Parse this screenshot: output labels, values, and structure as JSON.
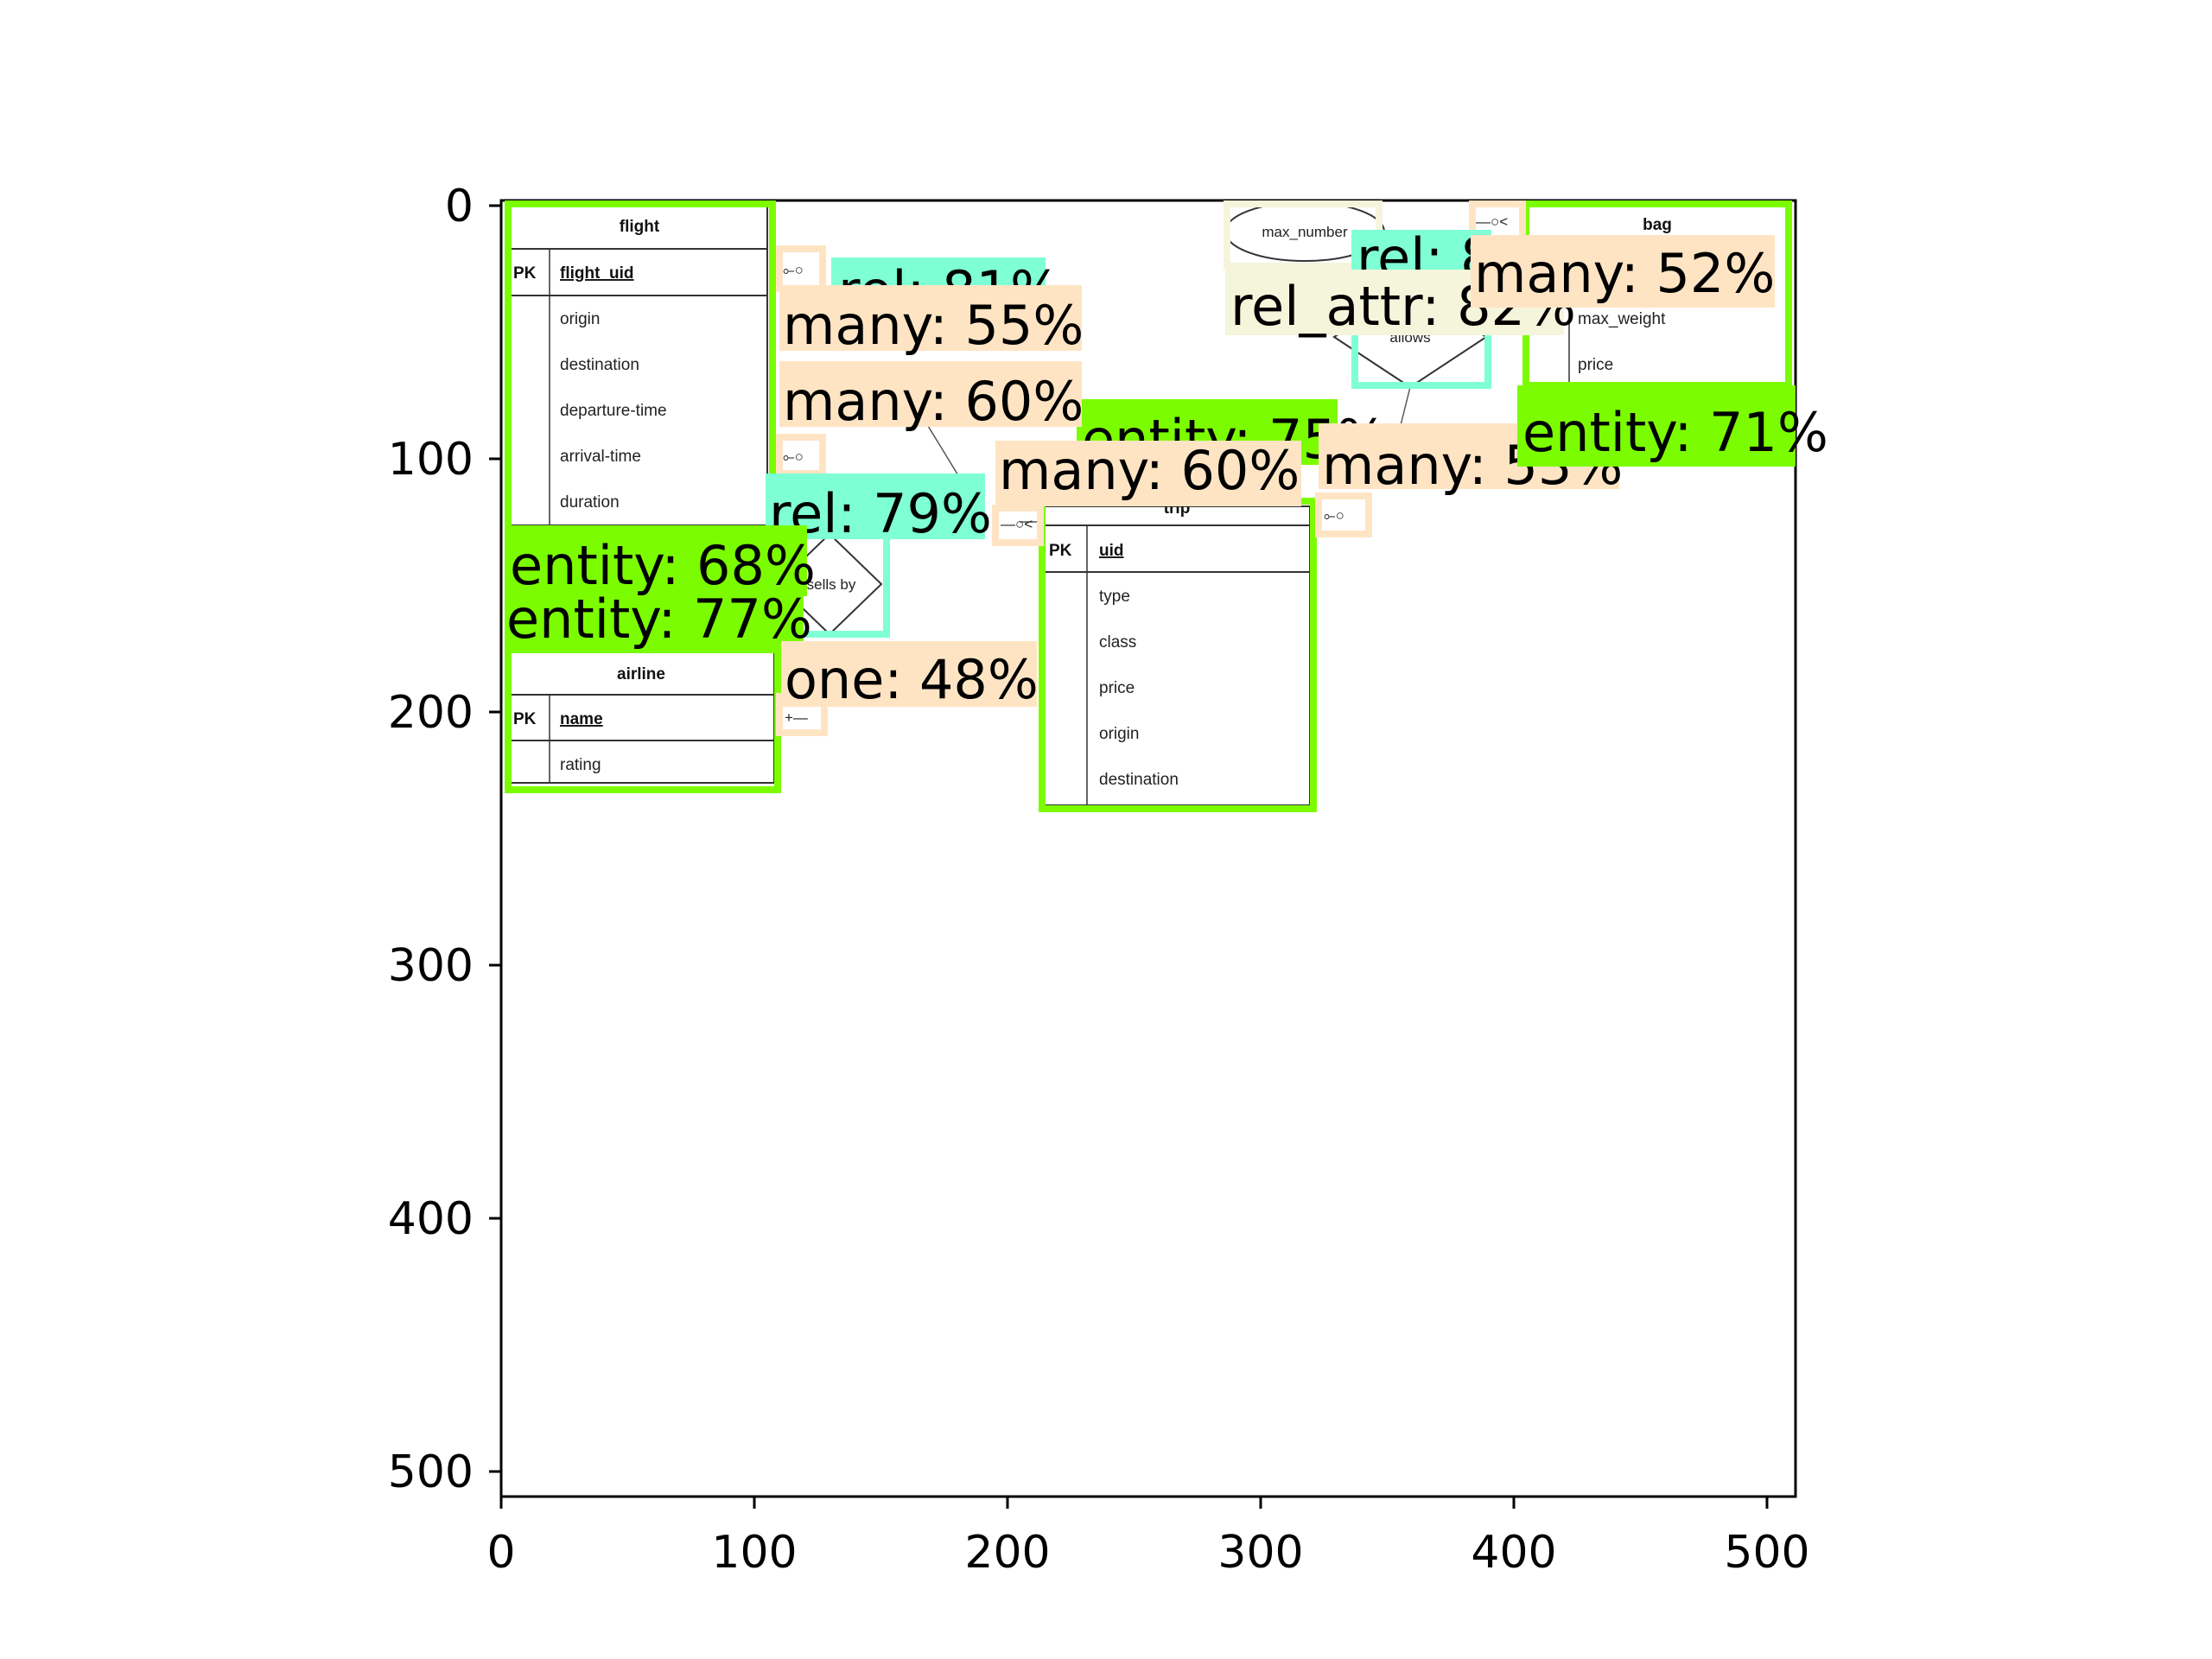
{
  "axes": {
    "x_ticks": [
      "0",
      "100",
      "200",
      "300",
      "400",
      "500"
    ],
    "y_ticks": [
      "0",
      "100",
      "200",
      "300",
      "400",
      "500"
    ]
  },
  "entities": {
    "flight": {
      "title": "flight",
      "pk_marker": "PK",
      "key": "flight_uid",
      "attributes": [
        "origin",
        "destination",
        "departure-time",
        "arrival-time",
        "duration"
      ]
    },
    "airline": {
      "title": "airline",
      "pk_marker": "PK",
      "key": "name",
      "attributes": [
        "rating"
      ]
    },
    "trip": {
      "title": "trip",
      "pk_marker": "PK",
      "key": "uid",
      "attributes": [
        "type",
        "class",
        "price",
        "origin",
        "destination"
      ]
    },
    "bag": {
      "title": "bag",
      "attributes": [
        "max_weight",
        "price"
      ]
    }
  },
  "relationships": {
    "sells_by": "sells by",
    "allows": "allows"
  },
  "rel_attributes": {
    "max_number": "max_number"
  },
  "cardinality_glyphs": {
    "many_optional": "⟜○",
    "optional_many": "—○<",
    "one": "+—"
  },
  "detections": [
    {
      "id": "det_rel_top",
      "label": "rel: 81%",
      "kind": "rel"
    },
    {
      "id": "det_many_55",
      "label": "many: 55%",
      "kind": "many"
    },
    {
      "id": "det_many_60a",
      "label": "many: 60%",
      "kind": "many"
    },
    {
      "id": "det_entity_75",
      "label": "entity: 75%",
      "kind": "entity"
    },
    {
      "id": "det_many_60b",
      "label": "many: 60%",
      "kind": "many"
    },
    {
      "id": "det_many_53",
      "label": "many: 53%",
      "kind": "many"
    },
    {
      "id": "det_rel_79",
      "label": "rel: 79%",
      "kind": "rel"
    },
    {
      "id": "det_entity_68",
      "label": "entity: 68%",
      "kind": "entity"
    },
    {
      "id": "det_entity_77",
      "label": "entity: 77%",
      "kind": "entity"
    },
    {
      "id": "det_one_48",
      "label": "one: 48%",
      "kind": "one"
    },
    {
      "id": "det_rel_allows",
      "label": "rel: 85%",
      "kind": "rel"
    },
    {
      "id": "det_rel_attr",
      "label": "rel_attr: 82%",
      "kind": "rel_attr"
    },
    {
      "id": "det_many_52",
      "label": "many: 52%",
      "kind": "many"
    },
    {
      "id": "det_entity_71",
      "label": "entity: 71%",
      "kind": "entity"
    }
  ],
  "colors": {
    "entity": "#7cfc00",
    "rel": "#7fffd4",
    "many": "#ffe4c4",
    "one": "#ffe4c4",
    "rel_attr": "#f5f5dc"
  }
}
